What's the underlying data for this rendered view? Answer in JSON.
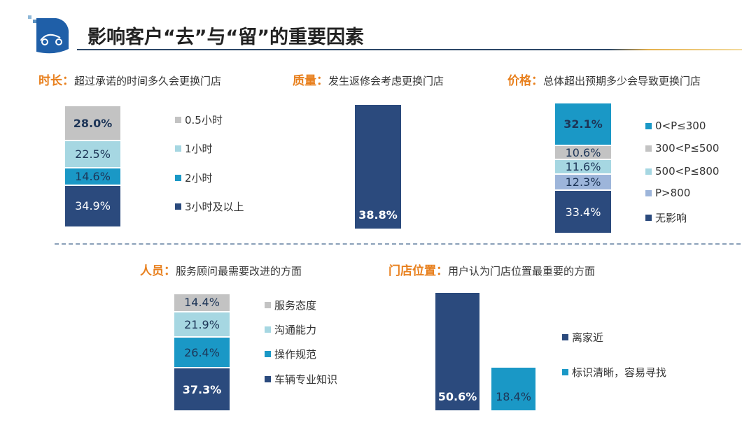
{
  "header": {
    "title": "影响客户“去”与“留”的重要因素"
  },
  "colors": {
    "navy": "#2b4a7d",
    "teal": "#1a98c6",
    "gray": "#c3c3c3",
    "light_teal": "#a6d7e2",
    "lavender": "#9db5da",
    "accent": "#e8801e"
  },
  "chart_data": [
    {
      "type": "bar",
      "stacked": true,
      "label": "时长：",
      "title": "超过承诺的时间多久会更换门店",
      "series": [
        {
          "name": "0.5小时",
          "value": 28.0,
          "display": "28.0%",
          "color": "#c3c3c3",
          "bold": true
        },
        {
          "name": "1小时",
          "value": 22.5,
          "display": "22.5%",
          "color": "#a6d7e2"
        },
        {
          "name": "2小时",
          "value": 14.6,
          "display": "14.6%",
          "color": "#1a98c6"
        },
        {
          "name": "3小时及以上",
          "value": 34.9,
          "display": "34.9%",
          "color": "#2b4a7d"
        }
      ]
    },
    {
      "type": "bar",
      "label": "质量：",
      "title": "发生返修会考虑更换门店",
      "series": [
        {
          "name": "",
          "value": 38.8,
          "display": "38.8%",
          "color": "#2b4a7d",
          "bold": true
        }
      ]
    },
    {
      "type": "bar",
      "stacked": true,
      "label": "价格：",
      "title": "总体超出预期多少会导致更换门店",
      "series": [
        {
          "name": "0<P≤300",
          "value": 32.1,
          "display": "32.1%",
          "color": "#1a98c6",
          "bold": true
        },
        {
          "name": "300<P≤500",
          "value": 10.6,
          "display": "10.6%",
          "color": "#c3c3c3"
        },
        {
          "name": "500<P≤800",
          "value": 11.6,
          "display": "11.6%",
          "color": "#a6d7e2"
        },
        {
          "name": "P>800",
          "value": 12.3,
          "display": "12.3%",
          "color": "#9db5da"
        },
        {
          "name": "无影响",
          "value": 33.4,
          "display": "33.4%",
          "color": "#2b4a7d"
        }
      ]
    },
    {
      "type": "bar",
      "stacked": true,
      "label": "人员：",
      "title": "服务顾问最需要改进的方面",
      "series": [
        {
          "name": "服务态度",
          "value": 14.4,
          "display": "14.4%",
          "color": "#c3c3c3"
        },
        {
          "name": "沟通能力",
          "value": 21.9,
          "display": "21.9%",
          "color": "#a6d7e2"
        },
        {
          "name": "操作规范",
          "value": 26.4,
          "display": "26.4%",
          "color": "#1a98c6"
        },
        {
          "name": "车辆专业知识",
          "value": 37.3,
          "display": "37.3%",
          "color": "#2b4a7d",
          "bold": true
        }
      ]
    },
    {
      "type": "bar",
      "label": "门店位置：",
      "title": "用户认为门店位置最重要的方面",
      "categories": [
        "离家近",
        "标识清晰，容易寻找"
      ],
      "series": [
        {
          "name": "离家近",
          "value": 50.6,
          "display": "50.6%",
          "color": "#2b4a7d",
          "bold": true
        },
        {
          "name": "标识清晰，容易寻找",
          "value": 18.4,
          "display": "18.4%",
          "color": "#1a98c6"
        }
      ]
    }
  ]
}
